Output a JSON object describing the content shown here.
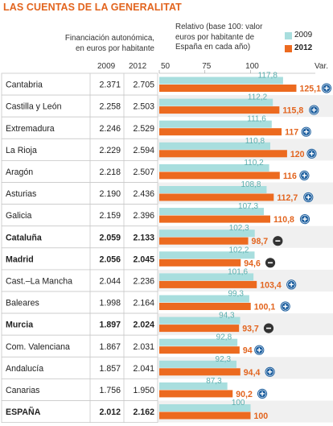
{
  "title": "LAS CUENTAS DE LA GENERALITAT",
  "header": {
    "left_line1": "Financiación autonómica,",
    "left_line2": "en euros por habitante",
    "right_line1": "Relativo (base 100: valor",
    "right_line2": "euros por habitante de",
    "right_line3": "España en cada año)",
    "var_label": "Var.",
    "year_a": "2009",
    "year_b": "2012"
  },
  "legend": [
    {
      "label": "2009",
      "color": "#a8dede"
    },
    {
      "label": "2012",
      "color": "#ec6a1f"
    }
  ],
  "colors": {
    "bar_2009": "#a8dede",
    "bar_2012": "#ec6a1f",
    "label_2009": "#5aaeae",
    "label_2012": "#e2641e",
    "badge_up": "#1d5f9f",
    "badge_down": "#333333",
    "row_band": "#f0f0f0",
    "row_line": "#c8c8c8"
  },
  "chart_data": {
    "type": "bar",
    "orientation": "horizontal",
    "xaxis_ticks": [
      50,
      75,
      100
    ],
    "xlim": [
      50,
      125.1
    ],
    "categories": [
      "Cantabria",
      "Castilla y León",
      "Extremadura",
      "La Rioja",
      "Aragón",
      "Asturias",
      "Galicia",
      "Cataluña",
      "Madrid",
      "Cast.–La Mancha",
      "Baleares",
      "Murcia",
      "Com. Valenciana",
      "Andalucía",
      "Canarias",
      "ESPAÑA"
    ],
    "bold": [
      false,
      false,
      false,
      false,
      false,
      false,
      false,
      true,
      true,
      false,
      false,
      true,
      false,
      false,
      false,
      true
    ],
    "euros_2009": [
      "2.371",
      "2.258",
      "2.246",
      "2.229",
      "2.218",
      "2.190",
      "2.159",
      "2.059",
      "2.056",
      "2.044",
      "1.998",
      "1.897",
      "1.867",
      "1.857",
      "1.756",
      "2.012"
    ],
    "euros_2012": [
      "2.705",
      "2.503",
      "2.529",
      "2.594",
      "2.507",
      "2.436",
      "2.396",
      "2.133",
      "2.045",
      "2.236",
      "2.164",
      "2.024",
      "2.031",
      "2.041",
      "1.950",
      "2.162"
    ],
    "series": [
      {
        "name": "2009",
        "values": [
          117.8,
          112.2,
          111.6,
          110.8,
          110.2,
          108.8,
          107.3,
          102.3,
          102.2,
          101.6,
          99.3,
          94.3,
          92.8,
          92.3,
          87.3,
          100
        ]
      },
      {
        "name": "2012",
        "values": [
          125.1,
          115.8,
          117,
          120,
          116,
          112.7,
          110.8,
          98.7,
          94.6,
          103.4,
          100.1,
          93.7,
          94,
          94.4,
          90.2,
          100
        ]
      }
    ],
    "labels_2009": [
      "117,8",
      "112,2",
      "111,6",
      "110,8",
      "110,2",
      "108,8",
      "107,3",
      "102,3",
      "102,2",
      "101,6",
      "99,3",
      "94,3",
      "92,8",
      "92,3",
      "87,3",
      "100"
    ],
    "labels_2012": [
      "125,1",
      "115,8",
      "117",
      "120",
      "116",
      "112,7",
      "110,8",
      "98,7",
      "94,6",
      "103,4",
      "100,1",
      "93,7",
      "94",
      "94,4",
      "90,2",
      "100"
    ],
    "variation": [
      "up",
      "up",
      "up",
      "up",
      "up",
      "up",
      "up",
      "down",
      "down",
      "up",
      "up",
      "down",
      "up",
      "up",
      "up",
      ""
    ]
  }
}
